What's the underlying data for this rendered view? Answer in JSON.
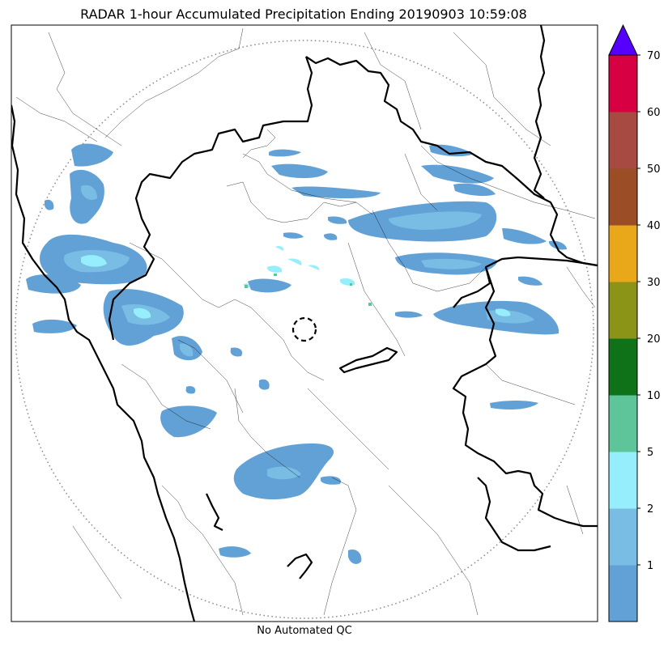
{
  "title": "RADAR 1-hour Accumulated Precipitation Ending 20190903 10:59:08",
  "footer": "No Automated QC",
  "colorbar": {
    "bins": [
      {
        "lo": 0,
        "hi": 1,
        "color": "#62a1d6"
      },
      {
        "lo": 1,
        "hi": 2,
        "color": "#79bde5"
      },
      {
        "lo": 2,
        "hi": 5,
        "color": "#96eefc"
      },
      {
        "lo": 5,
        "hi": 10,
        "color": "#5ec49a"
      },
      {
        "lo": 10,
        "hi": 20,
        "color": "#0f7219"
      },
      {
        "lo": 20,
        "hi": 30,
        "color": "#8b9416"
      },
      {
        "lo": 30,
        "hi": 40,
        "color": "#e8a81a"
      },
      {
        "lo": 40,
        "hi": 50,
        "color": "#9b4e26"
      },
      {
        "lo": 50,
        "hi": 60,
        "color": "#a64a42"
      },
      {
        "lo": 60,
        "hi": 70,
        "color": "#d60043"
      }
    ],
    "tick_labels": [
      "1",
      "2",
      "5",
      "10",
      "20",
      "30",
      "40",
      "50",
      "60",
      "70"
    ],
    "over_color": "#5500ff"
  }
}
